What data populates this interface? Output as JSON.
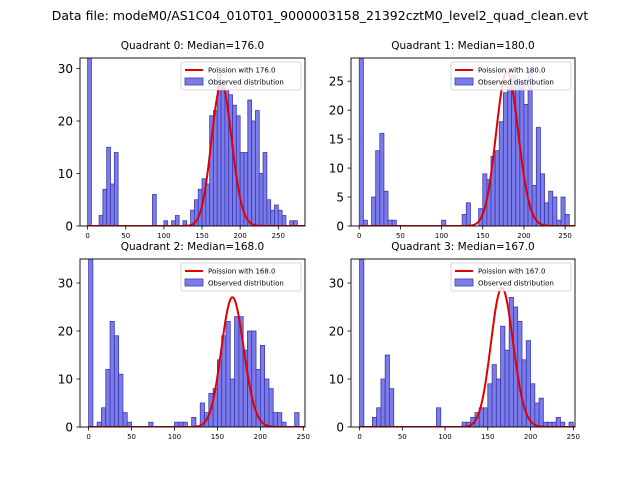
{
  "figure_title": "Data file: modeM0/AS1C04_010T01_9000003158_21392cztM0_level2_quad_clean.evt",
  "colors": {
    "bar_fill": "#7b7bea",
    "bar_edge": "#3b3bb0",
    "poisson_line": "#e00000"
  },
  "chart_data": [
    {
      "type": "bar",
      "title": "Quadrant 0: Median=176.0",
      "legend": [
        "Poission with 176.0",
        "Observed distribution"
      ],
      "legend_position": "top-right",
      "xlim": [
        -10,
        285
      ],
      "ylim": [
        0,
        32
      ],
      "xticks": [
        0,
        50,
        100,
        150,
        200,
        250
      ],
      "yticks": [
        0,
        10,
        20,
        30
      ],
      "bin_width": 5,
      "poisson_mean": 176.0,
      "poisson_peak": 27,
      "bin_starts": [
        0,
        15,
        20,
        25,
        30,
        35,
        85,
        100,
        110,
        115,
        125,
        135,
        140,
        145,
        150,
        155,
        160,
        165,
        170,
        175,
        180,
        185,
        190,
        195,
        200,
        205,
        210,
        215,
        220,
        225,
        230,
        235,
        240,
        245,
        250,
        255,
        265,
        270
      ],
      "values": [
        32,
        2,
        7,
        15,
        8,
        14,
        6,
        1,
        1,
        2,
        1,
        3,
        5,
        7,
        9,
        8,
        21,
        22,
        29,
        27,
        26,
        25,
        23,
        21,
        14,
        14,
        24,
        20,
        22,
        10,
        14,
        5,
        3,
        4,
        3,
        2,
        1,
        1
      ]
    },
    {
      "type": "bar",
      "title": "Quadrant 1: Median=180.0",
      "legend": [
        "Poission with 180.0",
        "Observed distribution"
      ],
      "legend_position": "top-right",
      "xlim": [
        -10,
        262
      ],
      "ylim": [
        0,
        29
      ],
      "xticks": [
        0,
        50,
        100,
        150,
        200,
        250
      ],
      "yticks": [
        0,
        5,
        10,
        15,
        20,
        25
      ],
      "bin_width": 5,
      "poisson_mean": 180.0,
      "poisson_peak": 26.6,
      "bin_starts": [
        0,
        5,
        15,
        20,
        25,
        30,
        35,
        40,
        100,
        125,
        130,
        145,
        150,
        155,
        160,
        165,
        170,
        175,
        180,
        185,
        190,
        195,
        200,
        205,
        210,
        215,
        220,
        225,
        230,
        235,
        240,
        245,
        250
      ],
      "values": [
        29,
        1,
        5,
        13,
        16,
        6,
        1,
        1,
        1,
        2,
        4,
        3,
        9,
        8,
        12,
        13,
        18,
        23,
        24,
        26,
        25,
        25,
        21,
        27,
        7,
        17,
        9,
        4,
        6,
        5,
        1,
        5,
        2
      ]
    },
    {
      "type": "bar",
      "title": "Quadrant 2: Median=168.0",
      "legend": [
        "Poission with 168.0",
        "Observed distribution"
      ],
      "legend_position": "top-right",
      "xlim": [
        -10,
        252
      ],
      "ylim": [
        0,
        35
      ],
      "xticks": [
        0,
        50,
        100,
        150,
        200,
        250
      ],
      "yticks": [
        0,
        10,
        20,
        30
      ],
      "bin_width": 5,
      "poisson_mean": 168.0,
      "poisson_peak": 27,
      "bin_starts": [
        0,
        10,
        15,
        20,
        25,
        30,
        35,
        40,
        45,
        70,
        100,
        105,
        110,
        120,
        130,
        135,
        140,
        145,
        150,
        155,
        160,
        165,
        170,
        175,
        180,
        185,
        190,
        195,
        200,
        205,
        210,
        215,
        220,
        225,
        240
      ],
      "values": [
        35,
        1,
        4,
        12,
        22,
        19,
        11,
        3,
        1,
        1,
        1,
        1,
        1,
        2,
        5,
        3,
        7,
        8,
        14,
        19,
        22,
        10,
        23,
        23,
        16,
        20,
        20,
        12,
        17,
        10,
        8,
        3,
        3,
        1,
        3
      ]
    },
    {
      "type": "bar",
      "title": "Quadrant 3: Median=167.0",
      "legend": [
        "Poission with 167.0",
        "Observed distribution"
      ],
      "legend_position": "top-right",
      "xlim": [
        -10,
        252
      ],
      "ylim": [
        0,
        35
      ],
      "xticks": [
        0,
        50,
        100,
        150,
        200,
        250
      ],
      "yticks": [
        0,
        10,
        20,
        30
      ],
      "bin_width": 5,
      "poisson_mean": 167.0,
      "poisson_peak": 29,
      "bin_starts": [
        0,
        15,
        20,
        25,
        30,
        35,
        90,
        120,
        125,
        130,
        135,
        140,
        145,
        150,
        155,
        160,
        165,
        170,
        175,
        180,
        185,
        190,
        195,
        200,
        205,
        210,
        215,
        220,
        225,
        230,
        235,
        245
      ],
      "values": [
        35,
        2,
        4,
        10,
        15,
        8,
        4,
        1,
        1,
        2,
        3,
        4,
        4,
        9,
        13,
        10,
        21,
        16,
        27,
        25,
        22,
        14,
        18,
        9,
        5,
        6,
        1,
        1,
        1,
        2,
        1,
        1
      ]
    }
  ]
}
